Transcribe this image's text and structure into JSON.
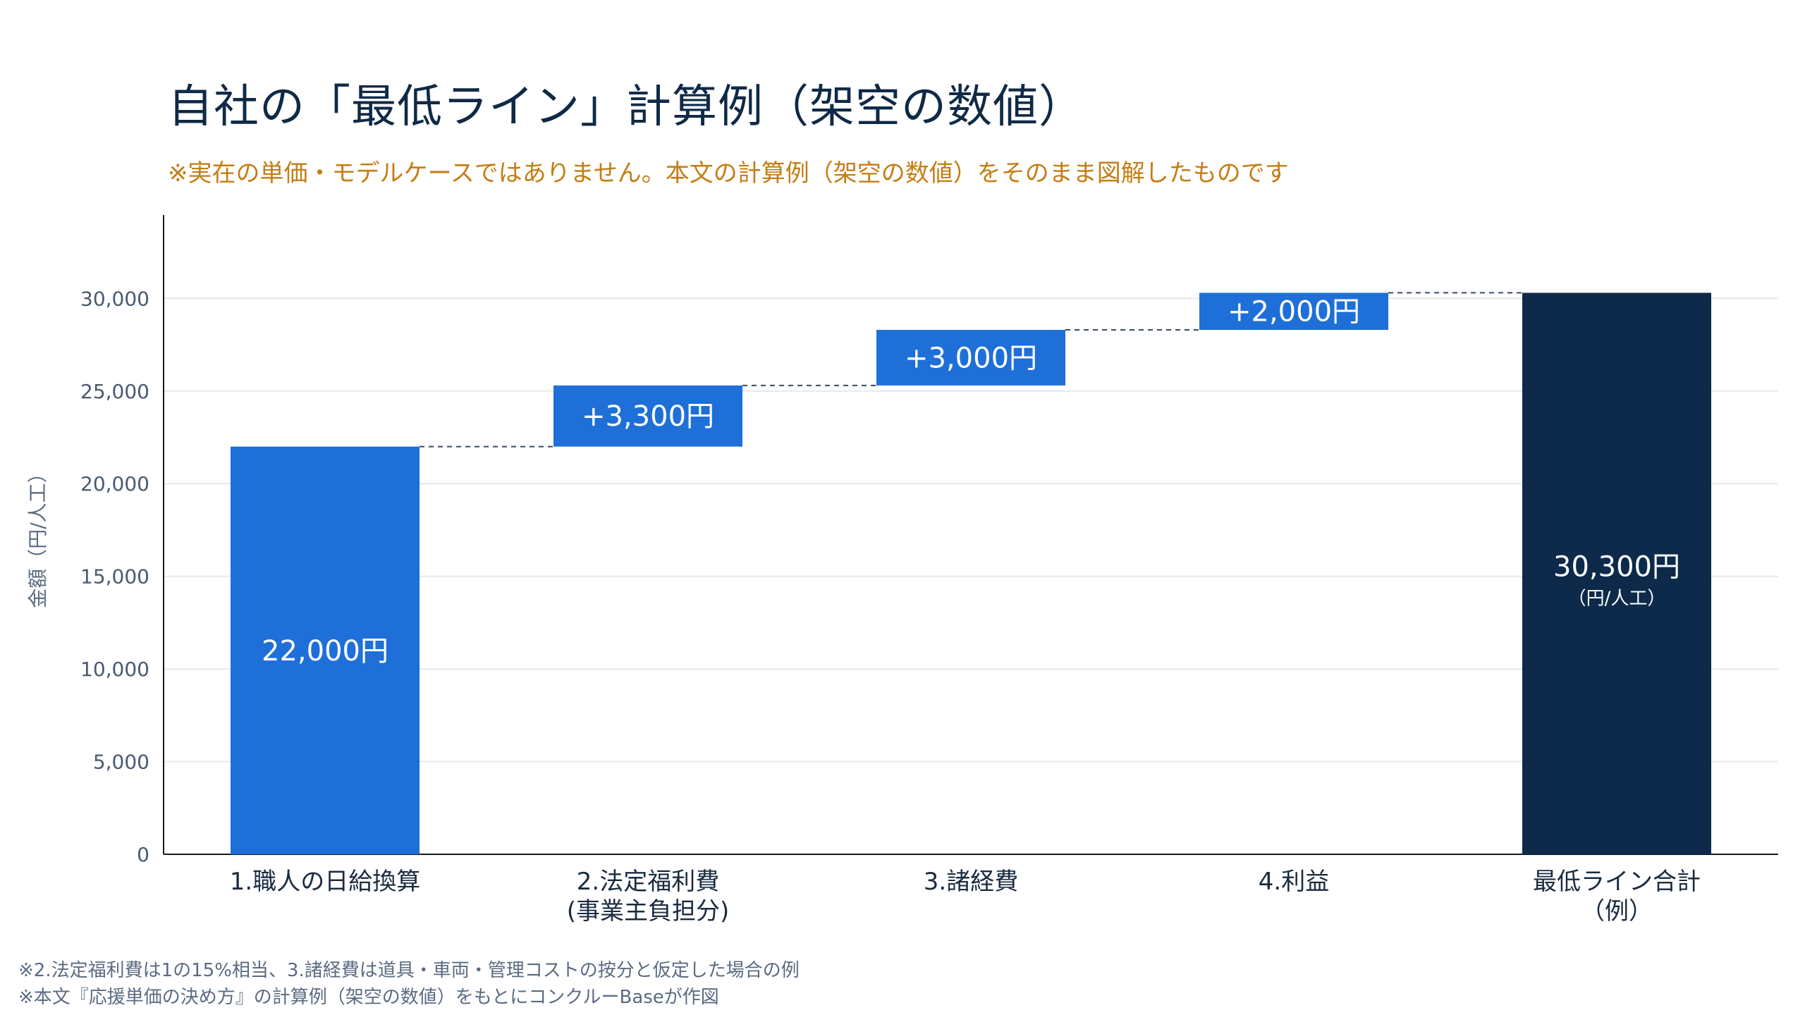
{
  "title": "自社の「最低ライン」計算例（架空の数値）",
  "subtitle": "※実在の単価・モデルケースではありません。本文の計算例（架空の数値）をそのまま図解したものです",
  "notes": [
    "※2.法定福利費は1の15%相当、3.諸経費は道具・車両・管理コストの按分と仮定した場合の例",
    "※本文『応援単価の決め方』の計算例（架空の数値）をもとにコンクルーBaseが作図"
  ],
  "chart_data": {
    "type": "bar",
    "subtype": "waterfall",
    "ylabel": "金額（円/人工）",
    "xlabel": "",
    "ylim": [
      0,
      34500
    ],
    "yticks": [
      0,
      5000,
      10000,
      15000,
      20000,
      25000,
      30000
    ],
    "ytick_labels": [
      "0",
      "5,000",
      "10,000",
      "15,000",
      "20,000",
      "25,000",
      "30,000"
    ],
    "grid": true,
    "legend": "none",
    "colors": {
      "increment": "#1f6fd8",
      "total": "#0d2a4a",
      "connector": "#3a4a60",
      "grid": "#e3e8ef",
      "axis": "#1a1a1a"
    },
    "bars": [
      {
        "category": [
          "1.職人の日給換算"
        ],
        "base": 0,
        "value": 22000,
        "kind": "increment",
        "label": "22,000円",
        "sublabel": ""
      },
      {
        "category": [
          "2.法定福利費",
          "(事業主負担分)"
        ],
        "base": 22000,
        "value": 3300,
        "kind": "increment",
        "label": "+3,300円",
        "sublabel": ""
      },
      {
        "category": [
          "3.諸経費"
        ],
        "base": 25300,
        "value": 3000,
        "kind": "increment",
        "label": "+3,000円",
        "sublabel": ""
      },
      {
        "category": [
          "4.利益"
        ],
        "base": 28300,
        "value": 2000,
        "kind": "increment",
        "label": "+2,000円",
        "sublabel": ""
      },
      {
        "category": [
          "最低ライン合計",
          "（例）"
        ],
        "base": 0,
        "value": 30300,
        "kind": "total",
        "label": "30,300円",
        "sublabel": "（円/人工）"
      }
    ]
  }
}
